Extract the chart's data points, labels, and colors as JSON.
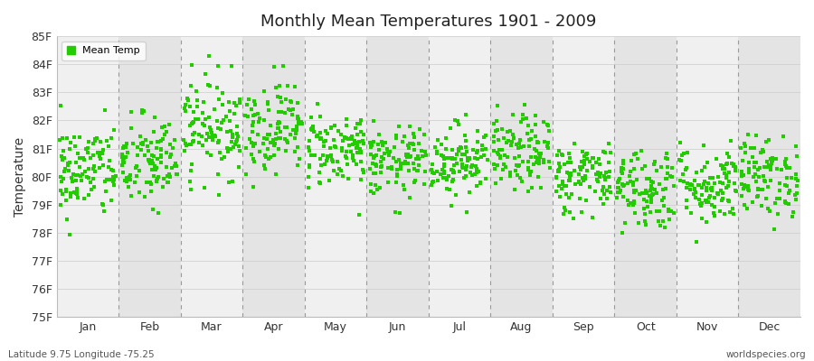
{
  "title": "Monthly Mean Temperatures 1901 - 2009",
  "ylabel": "Temperature",
  "xlabel_bottom_left": "Latitude 9.75 Longitude -75.25",
  "xlabel_bottom_right": "worldspecies.org",
  "legend_label": "Mean Temp",
  "marker_color": "#22cc00",
  "marker": "s",
  "ylim": [
    75,
    85
  ],
  "yticks": [
    75,
    76,
    77,
    78,
    79,
    80,
    81,
    82,
    83,
    84,
    85
  ],
  "ytick_labels": [
    "75F",
    "76F",
    "77F",
    "78F",
    "79F",
    "80F",
    "81F",
    "82F",
    "83F",
    "84F",
    "85F"
  ],
  "months": [
    "Jan",
    "Feb",
    "Mar",
    "Apr",
    "May",
    "Jun",
    "Jul",
    "Aug",
    "Sep",
    "Oct",
    "Nov",
    "Dec"
  ],
  "fig_background": "#ffffff",
  "plot_bg": "#f0f0f0",
  "band_odd": "#f0f0f0",
  "band_even": "#e4e4e4",
  "seed": 42,
  "n_years": 109,
  "mean_temps": [
    80.2,
    80.5,
    81.8,
    81.8,
    81.0,
    80.5,
    80.6,
    80.8,
    80.0,
    79.6,
    79.7,
    80.0
  ],
  "std_temps": [
    0.85,
    0.85,
    0.9,
    0.82,
    0.68,
    0.62,
    0.65,
    0.68,
    0.65,
    0.75,
    0.72,
    0.72
  ]
}
